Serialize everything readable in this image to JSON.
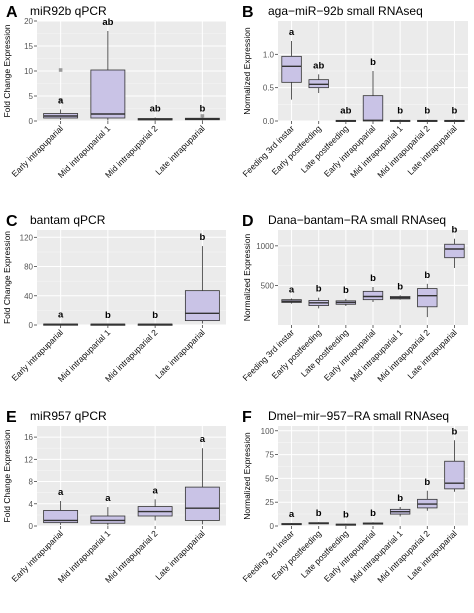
{
  "colors": {
    "panel_bg": "#ebebeb",
    "grid_major": "#ffffff",
    "box_fill": "#c9c3e6",
    "box_stroke": "#333333",
    "outlier": "#9a9a9a"
  },
  "chart_data": [
    {
      "letter": "A",
      "title": "miR92b qPCR",
      "type": "boxplot",
      "ylabel": "Fold Change Expression",
      "ylim": [
        0,
        20
      ],
      "yticks": [
        0,
        5,
        10,
        15,
        20
      ],
      "categories": [
        "Early intrapuparial",
        "Mid intrapuparial 1",
        "Mid intrapuparial 2",
        "Late intrapuparial"
      ],
      "boxes": [
        {
          "min": 0.2,
          "q1": 0.6,
          "median": 1.0,
          "q3": 1.5,
          "max": 2.3,
          "outliers": [
            4.2,
            10.2
          ],
          "label": "a"
        },
        {
          "min": 0.1,
          "q1": 0.6,
          "median": 1.4,
          "q3": 10.2,
          "max": 18.0,
          "outliers": [],
          "label": "ab"
        },
        {
          "min": 0.05,
          "q1": 0.2,
          "median": 0.35,
          "q3": 0.5,
          "max": 0.7,
          "outliers": [],
          "label": "ab"
        },
        {
          "min": 0.05,
          "q1": 0.25,
          "median": 0.4,
          "q3": 0.55,
          "max": 0.7,
          "outliers": [
            1.0
          ],
          "label": "b"
        }
      ]
    },
    {
      "letter": "B",
      "title": "aga−miR−92b small RNAseq",
      "type": "boxplot",
      "ylabel": "Normalized Expression",
      "ylim": [
        0,
        1.5
      ],
      "yticks": [
        0.0,
        0.5,
        1.0
      ],
      "tickfmt": 1,
      "categories": [
        "Feeding 3rd instar",
        "Early postfeeding",
        "Late postfeeding",
        "Early intrapuparial",
        "Mid intrapuparial 1",
        "Mid intrapuparial 2",
        "Late intrapuparial"
      ],
      "boxes": [
        {
          "min": 0.32,
          "q1": 0.58,
          "median": 0.82,
          "q3": 0.97,
          "max": 1.2,
          "outliers": [],
          "label": "a"
        },
        {
          "min": 0.42,
          "q1": 0.5,
          "median": 0.55,
          "q3": 0.62,
          "max": 0.7,
          "outliers": [],
          "label": "ab"
        },
        {
          "min": 0.0,
          "q1": 0.0,
          "median": 0.0,
          "q3": 0.01,
          "max": 0.02,
          "outliers": [],
          "label": "ab"
        },
        {
          "min": 0.0,
          "q1": 0.0,
          "median": 0.01,
          "q3": 0.38,
          "max": 0.75,
          "outliers": [],
          "label": "b"
        },
        {
          "min": 0.0,
          "q1": 0.0,
          "median": 0.0,
          "q3": 0.01,
          "max": 0.02,
          "outliers": [],
          "label": "b"
        },
        {
          "min": 0.0,
          "q1": 0.0,
          "median": 0.0,
          "q3": 0.01,
          "max": 0.02,
          "outliers": [],
          "label": "b"
        },
        {
          "min": 0.0,
          "q1": 0.0,
          "median": 0.0,
          "q3": 0.01,
          "max": 0.02,
          "outliers": [],
          "label": "b"
        }
      ]
    },
    {
      "letter": "C",
      "title": "bantam qPCR",
      "type": "boxplot",
      "ylabel": "Fold Change Expression",
      "ylim": [
        0,
        130
      ],
      "yticks": [
        0,
        40,
        80,
        120
      ],
      "categories": [
        "Early intrapuparial",
        "Mid intrapuparial 1",
        "Mid intrapuparial 2",
        "Late intrapuparial"
      ],
      "boxes": [
        {
          "min": 0.5,
          "q1": 0.8,
          "median": 1.0,
          "q3": 1.3,
          "max": 1.8,
          "outliers": [],
          "label": "a"
        },
        {
          "min": 0.3,
          "q1": 0.6,
          "median": 0.9,
          "q3": 1.2,
          "max": 1.6,
          "outliers": [],
          "label": "b"
        },
        {
          "min": 0.3,
          "q1": 0.6,
          "median": 0.9,
          "q3": 1.2,
          "max": 1.6,
          "outliers": [],
          "label": "b"
        },
        {
          "min": 2.0,
          "q1": 6.0,
          "median": 16.0,
          "q3": 47.0,
          "max": 108.0,
          "outliers": [],
          "label": "b"
        }
      ]
    },
    {
      "letter": "D",
      "title": "Dana−bantam−RA small RNAseq",
      "type": "boxplot",
      "ylabel": "Normalized Expression",
      "ylim": [
        0,
        1200
      ],
      "yticks": [
        500,
        1000
      ],
      "categories": [
        "Feeding 3rd instar",
        "Early postfeeding",
        "Late postfeeding",
        "Early intrapuparial",
        "Mid intrapuparial 1",
        "Mid intrapuparial 2",
        "Late intrapuparial"
      ],
      "boxes": [
        {
          "min": 270,
          "q1": 285,
          "median": 300,
          "q3": 320,
          "max": 335,
          "outliers": [],
          "label": "a"
        },
        {
          "min": 210,
          "q1": 245,
          "median": 280,
          "q3": 310,
          "max": 345,
          "outliers": [],
          "label": "b"
        },
        {
          "min": 240,
          "q1": 262,
          "median": 285,
          "q3": 305,
          "max": 330,
          "outliers": [],
          "label": "b"
        },
        {
          "min": 290,
          "q1": 320,
          "median": 360,
          "q3": 425,
          "max": 480,
          "outliers": [],
          "label": "b"
        },
        {
          "min": 320,
          "q1": 330,
          "median": 345,
          "q3": 360,
          "max": 375,
          "outliers": [],
          "label": "b"
        },
        {
          "min": 100,
          "q1": 230,
          "median": 370,
          "q3": 460,
          "max": 520,
          "outliers": [],
          "label": "b"
        },
        {
          "min": 720,
          "q1": 850,
          "median": 960,
          "q3": 1020,
          "max": 1090,
          "outliers": [],
          "label": "b"
        }
      ]
    },
    {
      "letter": "E",
      "title": "miR957 qPCR",
      "type": "boxplot",
      "ylabel": "Fold Change Expression",
      "ylim": [
        0,
        18
      ],
      "yticks": [
        0,
        4,
        8,
        12,
        16
      ],
      "categories": [
        "Early intrapuparial",
        "Mid intrapuparial 1",
        "Mid intrapuparial 2",
        "Late intrapuparial"
      ],
      "boxes": [
        {
          "min": 0.2,
          "q1": 0.6,
          "median": 1.0,
          "q3": 2.8,
          "max": 4.5,
          "outliers": [],
          "label": "a"
        },
        {
          "min": 0.1,
          "q1": 0.5,
          "median": 1.0,
          "q3": 1.8,
          "max": 3.4,
          "outliers": [],
          "label": "a"
        },
        {
          "min": 1.0,
          "q1": 1.8,
          "median": 2.6,
          "q3": 3.5,
          "max": 4.8,
          "outliers": [],
          "label": "a"
        },
        {
          "min": 0.3,
          "q1": 1.0,
          "median": 3.2,
          "q3": 7.0,
          "max": 14.0,
          "outliers": [],
          "label": "a"
        }
      ]
    },
    {
      "letter": "F",
      "title": "Dmel−mir−957−RA small RNAseq",
      "type": "boxplot",
      "ylabel": "Normalized Expression",
      "ylim": [
        0,
        105
      ],
      "yticks": [
        0,
        25,
        50,
        75,
        100
      ],
      "categories": [
        "Feeding 3rd instar",
        "Early postfeeding",
        "Late postfeeding",
        "Early intrapuparial",
        "Mid intrapuparial 1",
        "Mid intrapuparial 2",
        "Late intrapuparial"
      ],
      "boxes": [
        {
          "min": 1.0,
          "q1": 1.6,
          "median": 2.0,
          "q3": 2.6,
          "max": 3.2,
          "outliers": [],
          "label": "a"
        },
        {
          "min": 2.0,
          "q1": 2.6,
          "median": 3.0,
          "q3": 3.5,
          "max": 4.0,
          "outliers": [],
          "label": "b"
        },
        {
          "min": 0.6,
          "q1": 1.0,
          "median": 1.5,
          "q3": 2.0,
          "max": 2.5,
          "outliers": [],
          "label": "b"
        },
        {
          "min": 1.5,
          "q1": 2.0,
          "median": 2.5,
          "q3": 3.2,
          "max": 4.0,
          "outliers": [],
          "label": "b"
        },
        {
          "min": 10.0,
          "q1": 12.5,
          "median": 15.0,
          "q3": 17.5,
          "max": 20.0,
          "outliers": [],
          "label": "b"
        },
        {
          "min": 16.0,
          "q1": 19.0,
          "median": 23.0,
          "q3": 28.0,
          "max": 37.0,
          "outliers": [],
          "label": "b"
        },
        {
          "min": 36.0,
          "q1": 39.0,
          "median": 45.0,
          "q3": 68.0,
          "max": 90.0,
          "outliers": [],
          "label": "b"
        }
      ]
    }
  ]
}
